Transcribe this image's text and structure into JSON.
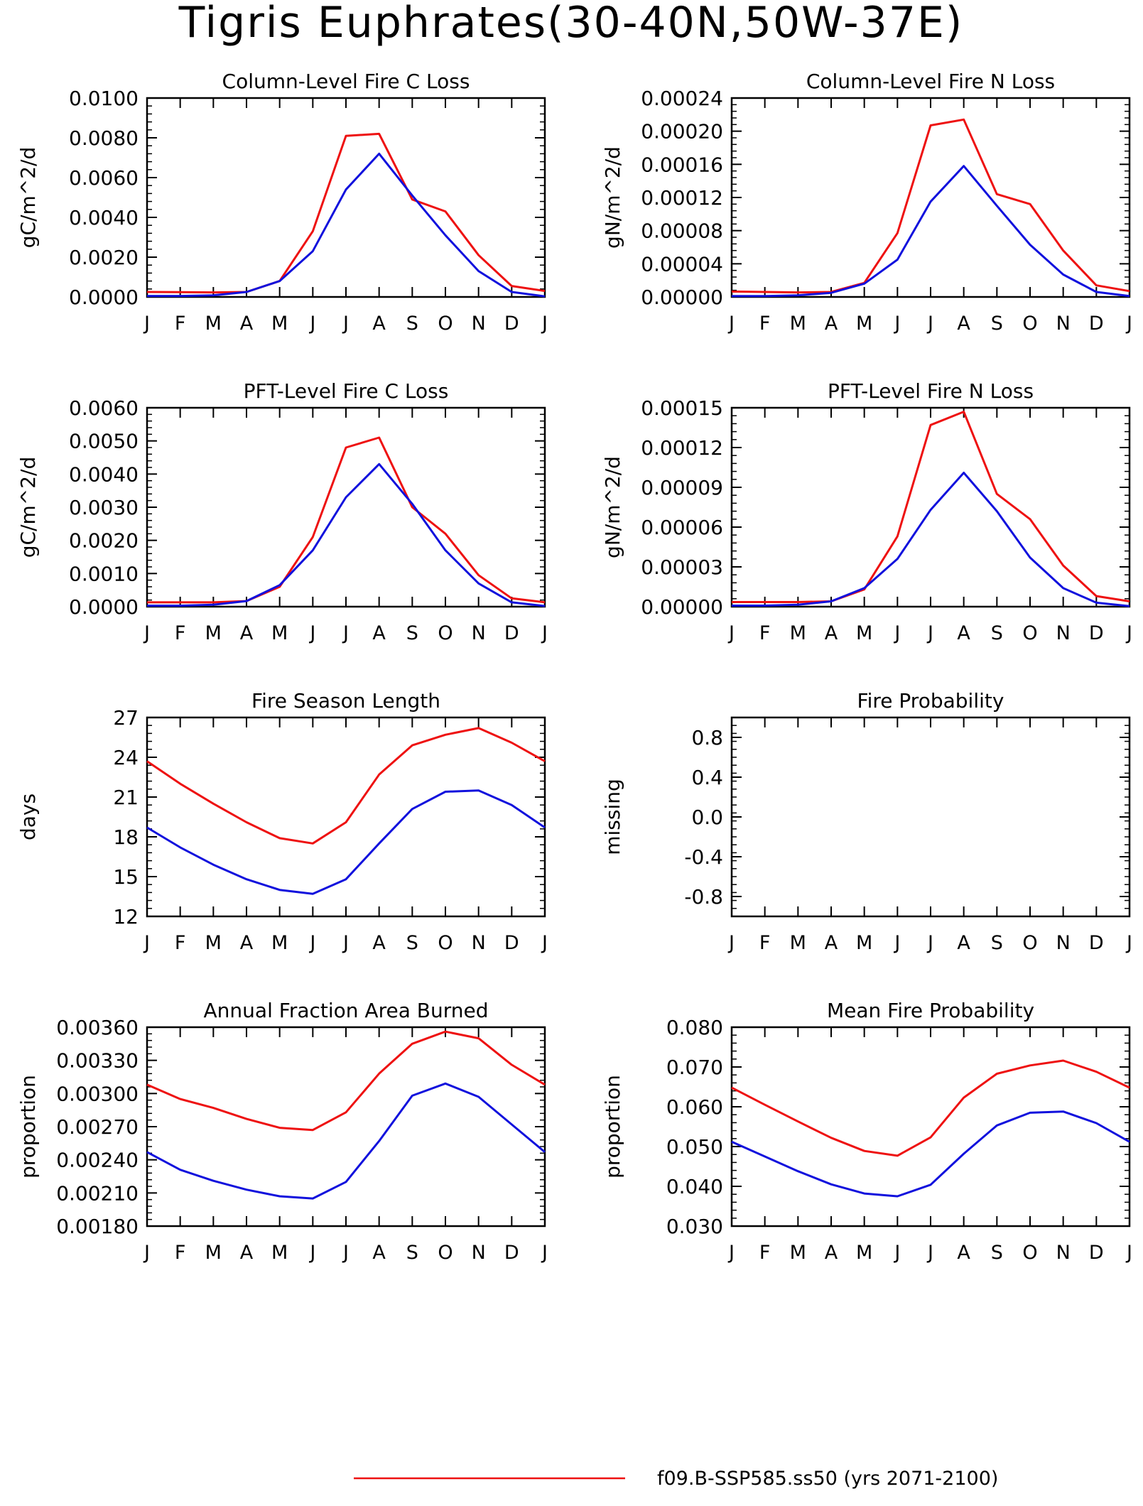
{
  "page": {
    "title": "Tigris Euphrates(30-40N,50W-37E)"
  },
  "colors": {
    "series1": "#ee1111",
    "series2": "#1111dd",
    "axis": "#000000"
  },
  "legend": {
    "entries": [
      {
        "label": "f09.B-SSP585.ss50 (yrs 2071-2100)",
        "color": "#ee1111"
      }
    ]
  },
  "chart_data": [
    {
      "type": "line",
      "title": "Column-Level Fire C Loss",
      "ylabel": "gC/m^2/d",
      "x": [
        "J",
        "F",
        "M",
        "A",
        "M",
        "J",
        "J",
        "A",
        "S",
        "O",
        "N",
        "D",
        "J"
      ],
      "yticks": [
        "0.0000",
        "0.0020",
        "0.0040",
        "0.0060",
        "0.0080",
        "0.0100"
      ],
      "ylim": [
        0,
        0.01
      ],
      "series": [
        {
          "color": "#ee1111",
          "values": [
            0.00025,
            0.00024,
            0.00023,
            0.00025,
            0.0008,
            0.0033,
            0.0081,
            0.0082,
            0.0049,
            0.0043,
            0.0021,
            0.00055,
            0.0003
          ]
        },
        {
          "color": "#1111dd",
          "values": [
            5e-05,
            5e-05,
            8e-05,
            0.00025,
            0.0008,
            0.0023,
            0.0054,
            0.0072,
            0.0051,
            0.0031,
            0.0013,
            0.00025,
            3e-05
          ]
        }
      ]
    },
    {
      "type": "line",
      "title": "Column-Level Fire N Loss",
      "ylabel": "gN/m^2/d",
      "x": [
        "J",
        "F",
        "M",
        "A",
        "M",
        "J",
        "J",
        "A",
        "S",
        "O",
        "N",
        "D",
        "J"
      ],
      "yticks": [
        "0.00000",
        "0.00004",
        "0.00008",
        "0.00012",
        "0.00016",
        "0.00020",
        "0.00024"
      ],
      "ylim": [
        0,
        0.00024
      ],
      "series": [
        {
          "color": "#ee1111",
          "values": [
            6.5e-06,
            6e-06,
            5.5e-06,
            6e-06,
            1.7e-05,
            7.7e-05,
            0.000207,
            0.000214,
            0.000124,
            0.000112,
            5.6e-05,
            1.4e-05,
            7e-06
          ]
        },
        {
          "color": "#1111dd",
          "values": [
            1e-06,
            1e-06,
            2e-06,
            5e-06,
            1.6e-05,
            4.5e-05,
            0.000115,
            0.000158,
            0.00011,
            6.3e-05,
            2.7e-05,
            6e-06,
            1e-06
          ]
        }
      ]
    },
    {
      "type": "line",
      "title": "PFT-Level Fire C Loss",
      "ylabel": "gC/m^2/d",
      "x": [
        "J",
        "F",
        "M",
        "A",
        "M",
        "J",
        "J",
        "A",
        "S",
        "O",
        "N",
        "D",
        "J"
      ],
      "yticks": [
        "0.0000",
        "0.0010",
        "0.0020",
        "0.0030",
        "0.0040",
        "0.0050",
        "0.0060"
      ],
      "ylim": [
        0,
        0.006
      ],
      "series": [
        {
          "color": "#ee1111",
          "values": [
            0.00013,
            0.00013,
            0.00013,
            0.00017,
            0.0006,
            0.0021,
            0.0048,
            0.0051,
            0.003,
            0.0022,
            0.00095,
            0.00025,
            0.00013
          ]
        },
        {
          "color": "#1111dd",
          "values": [
            3e-05,
            3e-05,
            6e-05,
            0.00017,
            0.00065,
            0.0017,
            0.0033,
            0.0043,
            0.0031,
            0.0017,
            0.0007,
            0.00013,
            2e-05
          ]
        }
      ]
    },
    {
      "type": "line",
      "title": "PFT-Level Fire N Loss",
      "ylabel": "gN/m^2/d",
      "x": [
        "J",
        "F",
        "M",
        "A",
        "M",
        "J",
        "J",
        "A",
        "S",
        "O",
        "N",
        "D",
        "J"
      ],
      "yticks": [
        "0.00000",
        "0.00003",
        "0.00006",
        "0.00009",
        "0.00012",
        "0.00015"
      ],
      "ylim": [
        0,
        0.00015
      ],
      "series": [
        {
          "color": "#ee1111",
          "values": [
            3.5e-06,
            3.5e-06,
            3.5e-06,
            4e-06,
            1.3e-05,
            5.3e-05,
            0.000137,
            0.000147,
            8.5e-05,
            6.6e-05,
            3.1e-05,
            8e-06,
            4e-06
          ]
        },
        {
          "color": "#1111dd",
          "values": [
            8e-07,
            8e-07,
            1.5e-06,
            4e-06,
            1.4e-05,
            3.6e-05,
            7.3e-05,
            0.000101,
            7.2e-05,
            3.7e-05,
            1.4e-05,
            3e-06,
            4e-07
          ]
        }
      ]
    },
    {
      "type": "line",
      "title": "Fire Season Length",
      "ylabel": "days",
      "x": [
        "J",
        "F",
        "M",
        "A",
        "M",
        "J",
        "J",
        "A",
        "S",
        "O",
        "N",
        "D",
        "J"
      ],
      "yticks": [
        "12",
        "15",
        "18",
        "21",
        "24",
        "27"
      ],
      "ylim": [
        12,
        27
      ],
      "series": [
        {
          "color": "#ee1111",
          "values": [
            23.7,
            22.0,
            20.5,
            19.1,
            17.9,
            17.5,
            19.1,
            22.7,
            24.9,
            25.7,
            26.2,
            25.1,
            23.7
          ]
        },
        {
          "color": "#1111dd",
          "values": [
            18.7,
            17.2,
            15.9,
            14.8,
            14.0,
            13.7,
            14.8,
            17.5,
            20.1,
            21.4,
            21.5,
            20.4,
            18.7
          ]
        }
      ]
    },
    {
      "type": "line",
      "title": "Fire Probability",
      "ylabel": "missing",
      "x": [
        "J",
        "F",
        "M",
        "A",
        "M",
        "J",
        "J",
        "A",
        "S",
        "O",
        "N",
        "D",
        "J"
      ],
      "yticks": [
        "-0.8",
        "-0.4",
        "0.0",
        "0.4",
        "0.8"
      ],
      "ylim": [
        -1.0,
        1.0
      ],
      "series": []
    },
    {
      "type": "line",
      "title": "Annual Fraction Area Burned",
      "ylabel": "proportion",
      "x": [
        "J",
        "F",
        "M",
        "A",
        "M",
        "J",
        "J",
        "A",
        "S",
        "O",
        "N",
        "D",
        "J"
      ],
      "yticks": [
        "0.00180",
        "0.00210",
        "0.00240",
        "0.00270",
        "0.00300",
        "0.00330",
        "0.00360"
      ],
      "ylim": [
        0.0018,
        0.0036
      ],
      "series": [
        {
          "color": "#ee1111",
          "values": [
            0.00308,
            0.00295,
            0.00287,
            0.00277,
            0.00269,
            0.00267,
            0.00283,
            0.00318,
            0.00345,
            0.00356,
            0.0035,
            0.00326,
            0.00308
          ]
        },
        {
          "color": "#1111dd",
          "values": [
            0.00247,
            0.00231,
            0.00221,
            0.00213,
            0.00207,
            0.00205,
            0.0022,
            0.00257,
            0.00298,
            0.00309,
            0.00297,
            0.00272,
            0.00247
          ]
        }
      ]
    },
    {
      "type": "line",
      "title": "Mean Fire Probability",
      "ylabel": "proportion",
      "x": [
        "J",
        "F",
        "M",
        "A",
        "M",
        "J",
        "J",
        "A",
        "S",
        "O",
        "N",
        "D",
        "J"
      ],
      "yticks": [
        "0.030",
        "0.040",
        "0.050",
        "0.060",
        "0.070",
        "0.080"
      ],
      "ylim": [
        0.03,
        0.08
      ],
      "series": [
        {
          "color": "#ee1111",
          "values": [
            0.0648,
            0.0605,
            0.0563,
            0.0522,
            0.0489,
            0.0477,
            0.0523,
            0.0623,
            0.0683,
            0.0704,
            0.0716,
            0.0688,
            0.0648
          ]
        },
        {
          "color": "#1111dd",
          "values": [
            0.0512,
            0.0475,
            0.0438,
            0.0405,
            0.0382,
            0.0375,
            0.0404,
            0.0482,
            0.0553,
            0.0585,
            0.0588,
            0.0559,
            0.0512
          ]
        }
      ]
    }
  ]
}
